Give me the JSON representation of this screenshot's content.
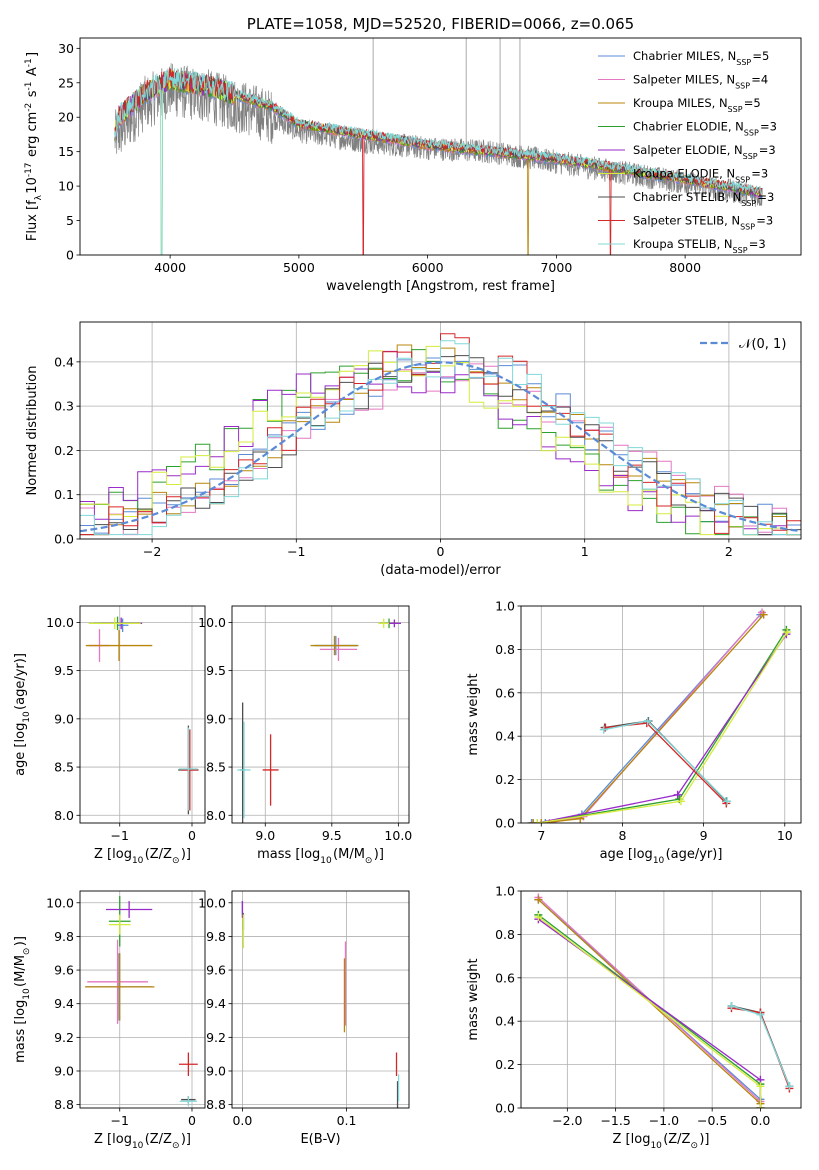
{
  "series_names": [
    "Chabrier MILES, N$_{SSP}$=5",
    "Salpeter MILES, N$_{SSP}$=4",
    "Kroupa MILES, N$_{SSP}$=5",
    "Chabrier ELODIE, N$_{SSP}$=3",
    "Salpeter ELODIE, N$_{SSP}$=3",
    "Kroupa ELODIE, N$_{SSP}$=3",
    "Chabrier STELIB, N$_{SSP}$=3",
    "Salpeter STELIB, N$_{SSP}$=3",
    "Kroupa STELIB, N$_{SSP}$=3"
  ],
  "colors": [
    "#5b8bd6",
    "#e377c2",
    "#b8860b",
    "#2ca02c",
    "#9a2bc9",
    "#d4ec3c",
    "#4d4d4d",
    "#d62728",
    "#80d8d8"
  ],
  "chart_data": [
    {
      "id": "spectrum",
      "type": "line",
      "title": "PLATE=1058, MJD=52520, FIBERID=0066, z=0.065",
      "xlabel": "wavelength [Angstrom, rest frame]",
      "ylabel": "Flux [f$_\\lambda$10$^{-17}$ erg cm$^{-2}$ s$^{-1}$ A$^{-1}$]",
      "xlim": [
        3300,
        8900
      ],
      "ylim": [
        0,
        31.5
      ],
      "xticks": [
        4000,
        5000,
        6000,
        7000,
        8000
      ],
      "yticks": [
        0,
        5,
        10,
        15,
        20,
        25,
        30
      ],
      "data_color": "#808080",
      "data_envelope": {
        "x": [
          3570,
          3800,
          4000,
          4300,
          4800,
          5000,
          5500,
          6000,
          6500,
          7000,
          7500,
          8000,
          8600
        ],
        "y": [
          17,
          22,
          24,
          23,
          20,
          18,
          16.5,
          15.5,
          15,
          13.5,
          12,
          10.5,
          8.5
        ]
      },
      "model_levels": {
        "x": [
          3570,
          3600,
          3800,
          4000,
          4300,
          4800,
          5000,
          5500,
          6000,
          6500,
          7000,
          7500,
          8000,
          8600
        ],
        "y": [
          17.5,
          20,
          23.5,
          25.5,
          24.5,
          21.5,
          19,
          17.5,
          16,
          15,
          14,
          12.5,
          11,
          9
        ]
      },
      "legend_loc": "upper right"
    },
    {
      "id": "residuals",
      "type": "line",
      "xlabel": "(data-model)/error",
      "ylabel": "Normed distribution",
      "xlim": [
        -2.5,
        2.5
      ],
      "ylim": [
        0,
        0.49
      ],
      "xticks": [
        -2,
        -1,
        0,
        1,
        2
      ],
      "yticks": [
        0.0,
        0.1,
        0.2,
        0.3,
        0.4
      ],
      "xtick_labels": [
        "−2",
        "−1",
        "0",
        "1",
        "2"
      ],
      "reference_label": "$\\mathcal{N}(0, 1)$",
      "reference_color": "#5b8bd6",
      "legend_loc": "upper right"
    },
    {
      "id": "age_vs_Z",
      "type": "scatter",
      "xlabel": "Z [log$_{10}$(Z/Z$_\\odot$)]",
      "ylabel": "age  [log$_{10}$(age/yr)]",
      "xlim": [
        -1.55,
        0.18
      ],
      "ylim": [
        7.92,
        10.17
      ],
      "xticks": [
        -1,
        0
      ],
      "xtick_labels": [
        "−1",
        "0"
      ],
      "yticks": [
        8.0,
        8.5,
        9.0,
        9.5,
        10.0
      ],
      "points": [
        {
          "x": -0.96,
          "y": 9.97,
          "xerr": 0.08,
          "yerr": 0.07
        },
        {
          "x": -1.28,
          "y": 9.76,
          "xerr": 0.14,
          "yerr": 0.17
        },
        {
          "x": -1.01,
          "y": 9.76,
          "xerr": 0.46,
          "yerr": 0.16
        },
        {
          "x": -1.03,
          "y": 9.99,
          "xerr": 0.32,
          "yerr": 0.07
        },
        {
          "x": -0.98,
          "y": 9.99,
          "xerr": 0.29,
          "yerr": 0.06
        },
        {
          "x": -1.07,
          "y": 9.99,
          "xerr": 0.36,
          "yerr": 0.06
        },
        {
          "x": -0.05,
          "y": 8.47,
          "xerr": 0.14,
          "yerr": 0.46
        },
        {
          "x": -0.03,
          "y": 8.47,
          "xerr": 0.12,
          "yerr": 0.42
        },
        {
          "x": -0.05,
          "y": 8.48,
          "xerr": 0.13,
          "yerr": 0.43
        }
      ]
    },
    {
      "id": "age_vs_mass",
      "type": "scatter",
      "xlabel": "mass [log$_{10}$(M/M$_\\odot$)]",
      "ylabel": "",
      "xlim": [
        8.75,
        10.08
      ],
      "ylim": [
        7.92,
        10.17
      ],
      "xticks": [
        9.0,
        9.5,
        10.0
      ],
      "yticks": [
        8.0,
        8.5,
        9.0,
        9.5,
        10.0
      ],
      "points": [
        {
          "x": 9.53,
          "y": 9.76,
          "xerr": 0.16,
          "yerr": 0.1
        },
        {
          "x": 9.55,
          "y": 9.72,
          "xerr": 0.14,
          "yerr": 0.12
        },
        {
          "x": 9.52,
          "y": 9.76,
          "xerr": 0.18,
          "yerr": 0.1
        },
        {
          "x": 9.93,
          "y": 9.99,
          "xerr": 0.07,
          "yerr": 0.05
        },
        {
          "x": 9.97,
          "y": 9.99,
          "xerr": 0.05,
          "yerr": 0.04
        },
        {
          "x": 9.89,
          "y": 9.99,
          "xerr": 0.04,
          "yerr": 0.05
        },
        {
          "x": 8.83,
          "y": 8.47,
          "xerr": 0.02,
          "yerr": 0.7
        },
        {
          "x": 9.04,
          "y": 8.47,
          "xerr": 0.06,
          "yerr": 0.37
        },
        {
          "x": 8.84,
          "y": 8.47,
          "xerr": 0.05,
          "yerr": 0.5
        }
      ]
    },
    {
      "id": "weight_vs_age",
      "type": "line",
      "xlabel": "age  [log$_{10}$(age/yr)]",
      "ylabel": "mass weight",
      "xlim": [
        6.75,
        10.2
      ],
      "ylim": [
        0,
        1
      ],
      "xticks": [
        7,
        8,
        9,
        10
      ],
      "yticks": [
        0.0,
        0.2,
        0.4,
        0.6,
        0.8,
        1.0
      ],
      "series": [
        {
          "x": [
            6.88,
            7.05,
            7.5,
            9.7
          ],
          "y": [
            0.0,
            0.0,
            0.04,
            0.96
          ]
        },
        {
          "x": [
            6.9,
            7.1,
            7.52,
            9.72
          ],
          "y": [
            0.0,
            0.0,
            0.03,
            0.97
          ]
        },
        {
          "x": [
            6.9,
            7.0,
            7.48,
            9.74
          ],
          "y": [
            0.0,
            0.0,
            0.02,
            0.96
          ]
        },
        {
          "x": [
            6.95,
            8.7,
            10.02
          ],
          "y": [
            0.0,
            0.11,
            0.89
          ]
        },
        {
          "x": [
            6.95,
            8.68,
            10.02
          ],
          "y": [
            0.0,
            0.13,
            0.87
          ]
        },
        {
          "x": [
            6.95,
            8.72,
            10.03
          ],
          "y": [
            0.0,
            0.1,
            0.88
          ]
        },
        {
          "x": [
            7.78,
            8.32,
            9.28
          ],
          "y": [
            0.44,
            0.47,
            0.1
          ]
        },
        {
          "x": [
            7.79,
            8.3,
            9.28
          ],
          "y": [
            0.44,
            0.46,
            0.09
          ]
        },
        {
          "x": [
            7.77,
            8.31,
            9.29
          ],
          "y": [
            0.43,
            0.47,
            0.1
          ]
        }
      ]
    },
    {
      "id": "mass_vs_Z",
      "type": "scatter",
      "xlabel": "Z [log$_{10}$(Z/Z$_\\odot$)]",
      "ylabel": "mass [log$_{10}$(M/M$_\\odot$)]",
      "xlim": [
        -1.55,
        0.18
      ],
      "ylim": [
        8.78,
        10.07
      ],
      "xticks": [
        -1,
        0
      ],
      "xtick_labels": [
        "−1",
        "0"
      ],
      "yticks": [
        8.8,
        9.0,
        9.2,
        9.4,
        9.6,
        9.8,
        10.0
      ],
      "points": [
        {
          "x": -1.01,
          "y": 9.5,
          "xerr": 0.46,
          "yerr": 0.2
        },
        {
          "x": -1.03,
          "y": 9.53,
          "xerr": 0.42,
          "yerr": 0.25
        },
        {
          "x": -1.0,
          "y": 9.5,
          "xerr": 0.48,
          "yerr": 0.2
        },
        {
          "x": -1.0,
          "y": 9.89,
          "xerr": 0.15,
          "yerr": 0.15
        },
        {
          "x": -0.87,
          "y": 9.96,
          "xerr": 0.32,
          "yerr": 0.05
        },
        {
          "x": -1.0,
          "y": 9.87,
          "xerr": 0.15,
          "yerr": 0.06
        },
        {
          "x": -0.05,
          "y": 8.83,
          "xerr": 0.1,
          "yerr": 0.02
        },
        {
          "x": -0.05,
          "y": 9.04,
          "xerr": 0.13,
          "yerr": 0.07
        },
        {
          "x": -0.05,
          "y": 8.82,
          "xerr": 0.12,
          "yerr": 0.03
        }
      ]
    },
    {
      "id": "mass_vs_EBV",
      "type": "scatter",
      "xlabel": "E(B-V)",
      "ylabel": "",
      "xlim": [
        -0.01,
        0.16
      ],
      "ylim": [
        8.78,
        10.07
      ],
      "xticks": [
        0.0,
        0.1
      ],
      "yticks": [
        8.8,
        9.0,
        9.2,
        9.4,
        9.6,
        9.8,
        10.0
      ],
      "points": [
        {
          "x": 0.0,
          "y": 9.97,
          "xerr": 0,
          "yerr": 0.04
        },
        {
          "x": 0.099,
          "y": 9.52,
          "xerr": 0,
          "yerr": 0.25
        },
        {
          "x": 0.098,
          "y": 9.45,
          "xerr": 0,
          "yerr": 0.22
        },
        {
          "x": 0.001,
          "y": 9.89,
          "xerr": 0,
          "yerr": 0.05
        },
        {
          "x": 0.0,
          "y": 9.96,
          "xerr": 0,
          "yerr": 0.05
        },
        {
          "x": 0.001,
          "y": 9.83,
          "xerr": 0,
          "yerr": 0.1
        },
        {
          "x": 0.149,
          "y": 8.86,
          "xerr": 0,
          "yerr": 0.08
        },
        {
          "x": 0.148,
          "y": 9.04,
          "xerr": 0,
          "yerr": 0.07
        },
        {
          "x": 0.15,
          "y": 8.9,
          "xerr": 0,
          "yerr": 0.08
        }
      ]
    },
    {
      "id": "weight_vs_Z",
      "type": "line",
      "xlabel": "Z [log$_{10}$(Z/Z$_\\odot$)]",
      "ylabel": "mass weight",
      "xlim": [
        -2.48,
        0.42
      ],
      "ylim": [
        0,
        1
      ],
      "xticks": [
        -2.0,
        -1.5,
        -1.0,
        -0.5,
        0.0
      ],
      "xtick_labels": [
        "−2.0",
        "−1.5",
        "−1.0",
        "−0.5",
        "0.0"
      ],
      "yticks": [
        0.0,
        0.2,
        0.4,
        0.6,
        0.8,
        1.0
      ],
      "series": [
        {
          "x": [
            -2.3,
            0.0,
            0.0
          ],
          "y": [
            0.96,
            0.04,
            0.0
          ]
        },
        {
          "x": [
            -2.3,
            0.0,
            0.0
          ],
          "y": [
            0.97,
            0.03,
            0.0
          ]
        },
        {
          "x": [
            -2.3,
            0.0,
            0.0
          ],
          "y": [
            0.96,
            0.02,
            0.0
          ]
        },
        {
          "x": [
            -2.3,
            0.0,
            0.0
          ],
          "y": [
            0.89,
            0.11,
            0.0
          ]
        },
        {
          "x": [
            -2.3,
            0.0,
            0.0
          ],
          "y": [
            0.87,
            0.13,
            0.0
          ]
        },
        {
          "x": [
            -2.3,
            0.0,
            0.0
          ],
          "y": [
            0.88,
            0.1,
            0.0
          ]
        },
        {
          "x": [
            -0.3,
            0.0,
            0.3
          ],
          "y": [
            0.47,
            0.44,
            0.1
          ]
        },
        {
          "x": [
            -0.3,
            0.0,
            0.3
          ],
          "y": [
            0.46,
            0.44,
            0.09
          ]
        },
        {
          "x": [
            -0.3,
            0.0,
            0.3
          ],
          "y": [
            0.47,
            0.43,
            0.1
          ]
        }
      ]
    }
  ]
}
